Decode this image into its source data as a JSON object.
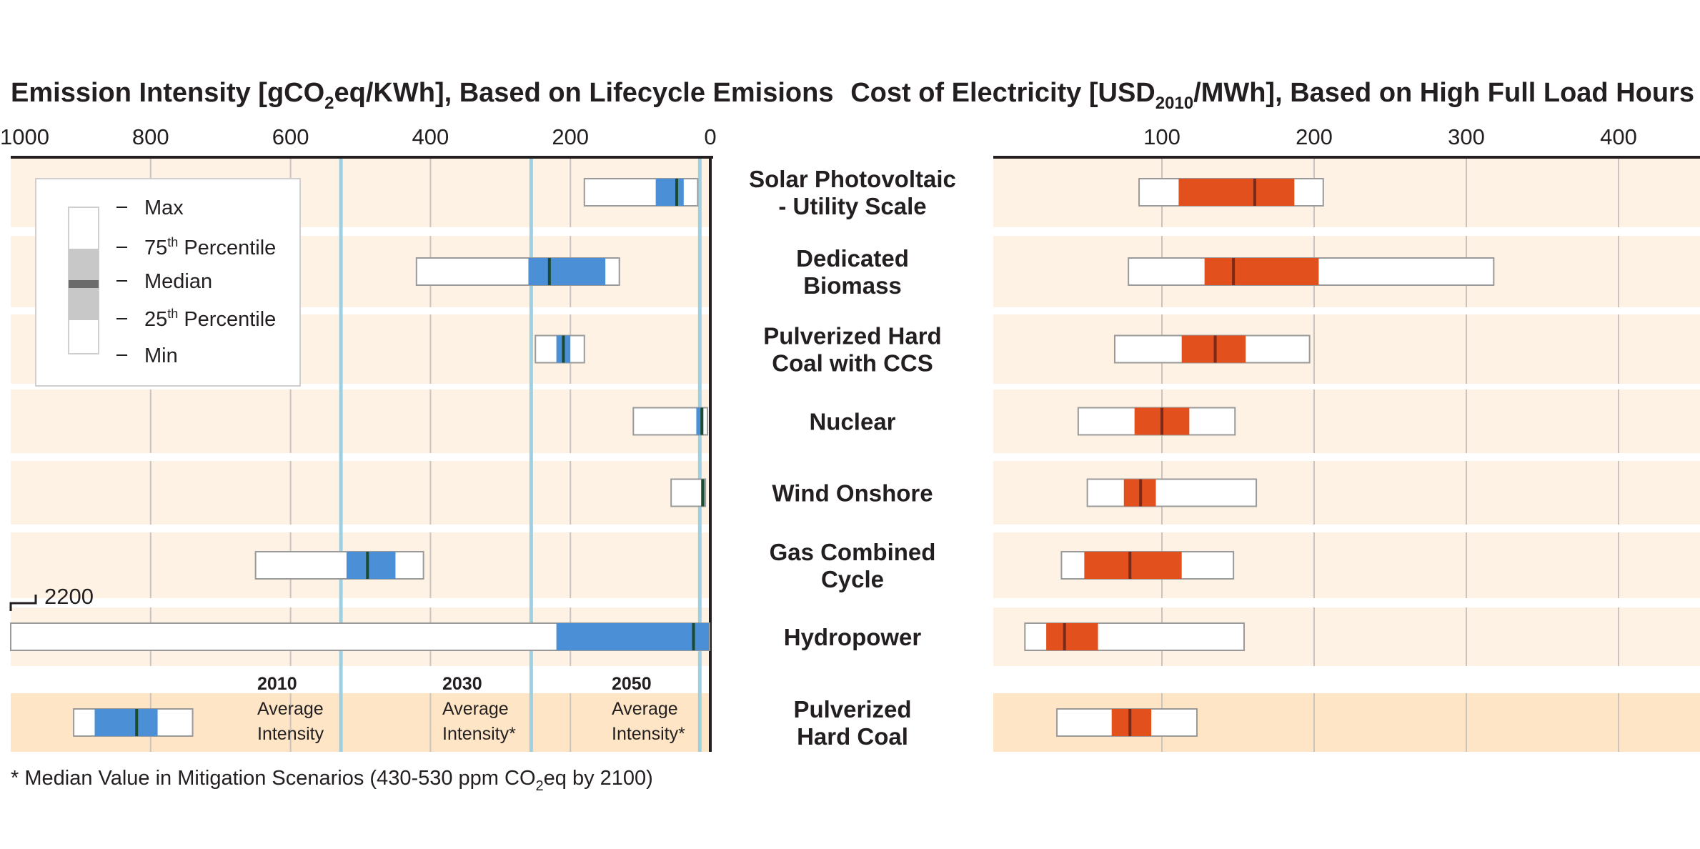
{
  "colors": {
    "row_bg": "#fdf2e3",
    "row_bg_ref": "#fde5c5",
    "emission_box": "#4b8fd6",
    "cost_box": "#e2501e",
    "grid": "#c9c4be",
    "reference_line": "#9dd0e2",
    "median_emission": "#1e4a2e",
    "median_cost": "#7a2a18"
  },
  "chart_data": [
    {
      "type": "box",
      "title_parts": [
        "Emission Intensity [gCO",
        "2",
        "eq/KWh], Based on Lifecycle Emisions"
      ],
      "xlim": [
        1000,
        0
      ],
      "ticks": [
        "1000",
        "800",
        "600",
        "400",
        "200",
        "0"
      ],
      "tick_values": [
        1000,
        800,
        600,
        400,
        200,
        0
      ],
      "categories": [
        "Solar Photovoltaic - Utility Scale",
        "Dedicated Biomass",
        "Pulverized Hard Coal with CCS",
        "Nuclear",
        "Wind Onshore",
        "Gas Combined Cycle",
        "Hydropower",
        "Pulverized Hard Coal"
      ],
      "min": [
        18,
        130,
        180,
        4,
        7,
        410,
        1,
        740
      ],
      "q1": [
        38,
        150,
        200,
        10,
        8,
        450,
        220,
        790
      ],
      "median": [
        48,
        230,
        210,
        12,
        11,
        490,
        24,
        820
      ],
      "q3": [
        78,
        260,
        220,
        20,
        12,
        520,
        2,
        880
      ],
      "max": [
        180,
        420,
        250,
        110,
        56,
        650,
        2200,
        910
      ],
      "max_label": "2200",
      "reference_lines": [
        {
          "year": "2010",
          "label_lines": [
            "2010",
            "Average",
            "Intensity"
          ],
          "value": 528
        },
        {
          "year": "2030",
          "label_lines": [
            "2030",
            "Average",
            "Intensity*"
          ],
          "value": 256
        },
        {
          "year": "2050",
          "label_lines": [
            "2050",
            "Average",
            "Intensity*"
          ],
          "value": 15
        }
      ]
    },
    {
      "type": "box",
      "title_parts": [
        "Cost of Electricity [USD",
        "2010",
        "/MWh], Based on High Full Load Hours"
      ],
      "xlim": [
        0,
        450
      ],
      "ticks": [
        "100",
        "200",
        "300",
        "400"
      ],
      "tick_values": [
        100,
        200,
        300,
        400
      ],
      "categories": [
        "Solar Photovoltaic - Utility Scale",
        "Dedicated Biomass",
        "Pulverized Hard Coal with CCS",
        "Nuclear",
        "Wind Onshore",
        "Gas Combined Cycle",
        "Hydropower",
        "Pulverized Hard Coal"
      ],
      "min": [
        85,
        78,
        69,
        45,
        51,
        34,
        10,
        31
      ],
      "q1": [
        111,
        128,
        113,
        82,
        75,
        49,
        24,
        67
      ],
      "median": [
        161,
        147,
        135,
        100,
        86,
        79,
        36,
        79
      ],
      "q3": [
        187,
        203,
        155,
        118,
        96,
        113,
        58,
        93
      ],
      "max": [
        206,
        318,
        197,
        148,
        162,
        147,
        154,
        123
      ]
    }
  ],
  "category_labels": [
    [
      "Solar Photovoltaic",
      "- Utility Scale"
    ],
    [
      "Dedicated",
      "Biomass"
    ],
    [
      "Pulverized Hard",
      "Coal with CCS"
    ],
    [
      "Nuclear"
    ],
    [
      "Wind Onshore"
    ],
    [
      "Gas Combined",
      "Cycle"
    ],
    [
      "Hydropower"
    ],
    [
      "Pulverized",
      "Hard Coal"
    ]
  ],
  "legend": {
    "max": "Max",
    "p75_prefix": "75",
    "p75_sup": "th",
    "p75_suffix": " Percentile",
    "median": "Median",
    "p25_prefix": "25",
    "p25_sup": "th",
    "p25_suffix": " Percentile",
    "min": "Min"
  },
  "footnote_parts": [
    "* Median Value in Mitigation Scenarios (430-530 ppm CO",
    "2",
    "eq by 2100)"
  ]
}
